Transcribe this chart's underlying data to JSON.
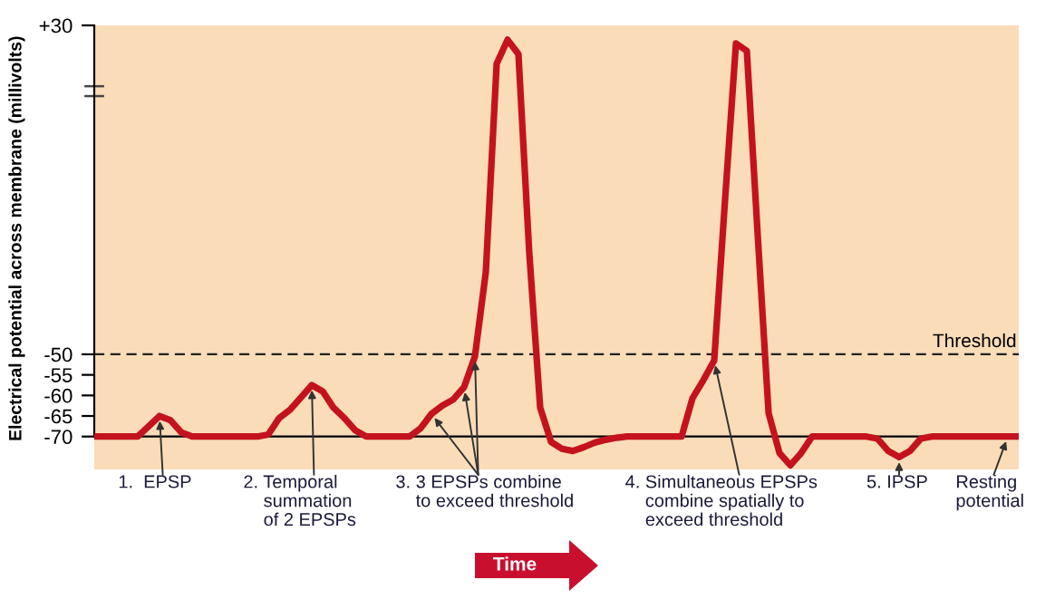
{
  "chart_data": {
    "type": "line",
    "ylabel": "Electrical potential across membrane (millivolts)",
    "categories": [
      null,
      null,
      null,
      null,
      null,
      null,
      null,
      null,
      null,
      null,
      null,
      null,
      null,
      null,
      null,
      null,
      null,
      null,
      null,
      null,
      null,
      null,
      null,
      null,
      null,
      null,
      null,
      null,
      null,
      null,
      null,
      null,
      null,
      null,
      null,
      null,
      null,
      null,
      null,
      null,
      null,
      null,
      null,
      null,
      null,
      null,
      null,
      null,
      null,
      null,
      null,
      null,
      null,
      null,
      null,
      null,
      null,
      null,
      null,
      null,
      null,
      null,
      null,
      null,
      null,
      null,
      null,
      null,
      null,
      null,
      null,
      null,
      null,
      null,
      null,
      null,
      null,
      null,
      null,
      null,
      null,
      null,
      null,
      null,
      null,
      null
    ],
    "series": [
      {
        "color": "#c4121f",
        "values": [
          -70,
          -70,
          -70,
          -70,
          -70,
          -67.5,
          -65,
          -66,
          -69,
          -70,
          -70,
          -70,
          -70,
          -70,
          -70,
          -70,
          -69.5,
          -65.5,
          -63.5,
          -60.5,
          -57.5,
          -59,
          -63,
          -65.5,
          -68.5,
          -70,
          -70,
          -70,
          -70,
          -70,
          -68,
          -64.5,
          -62.5,
          -61,
          -58,
          -50.5,
          -30,
          20.7,
          26.5,
          23,
          -25.5,
          -63,
          -71.3,
          -73,
          -73.5,
          -72.6,
          -71.5,
          -70.8,
          -70.3,
          -70,
          -70,
          -70,
          -70,
          -70,
          -70,
          -60.7,
          -56.3,
          -51.5,
          -12.3,
          25.6,
          23.8,
          -21,
          -64.3,
          -74,
          -77,
          -74,
          -70,
          -70,
          -70,
          -70,
          -70,
          -70,
          -70.5,
          -73.5,
          -75,
          -73.5,
          -70.5,
          -70,
          -70,
          -70,
          -70,
          -70,
          -70,
          -70,
          -70,
          -70
        ]
      }
    ],
    "ylim": [
      -78,
      30
    ],
    "yticks": [
      -70,
      -65,
      -60,
      -55,
      -50,
      {
        "value": 30,
        "label": "+30"
      }
    ],
    "tick_labels": "y",
    "line_style": "solid",
    "ref_lines": [
      {
        "axis": "y",
        "value": -70,
        "color": "#000000",
        "line_style": "solid"
      },
      {
        "axis": "y",
        "value": -50,
        "label": "Threshold",
        "color": "#222222",
        "line_style": "dashed"
      }
    ],
    "annotations": [
      "1.  EPSP",
      "2. Temporal\n    summation\n    of 2 EPSPs",
      "3. 3 EPSPs combine\n    to exceed threshold",
      "4. Simultaneous EPSPs\n    combine spatially to\n    exceed threshold",
      "5. IPSP",
      "Resting\npotential",
      "Time"
    ]
  }
}
